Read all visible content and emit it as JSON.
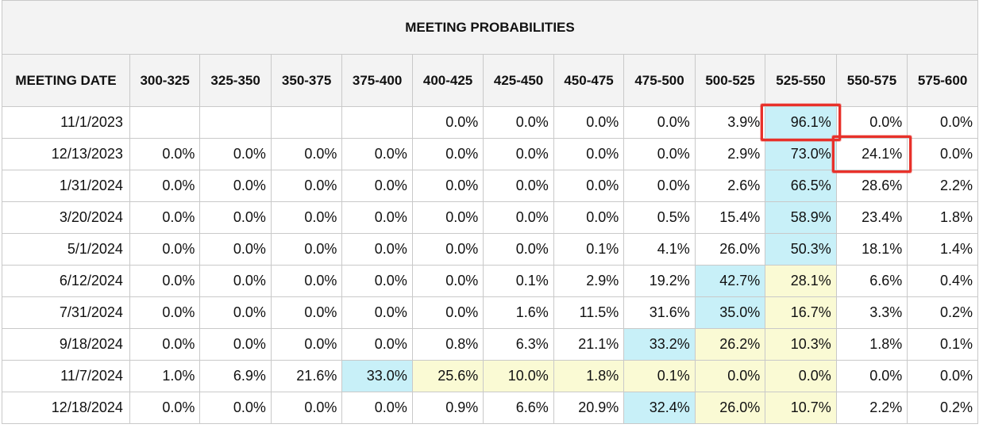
{
  "chart_data": {
    "type": "table",
    "title": "MEETING PROBABILITIES",
    "columns": [
      "MEETING DATE",
      "300-325",
      "325-350",
      "350-375",
      "375-400",
      "400-425",
      "425-450",
      "450-475",
      "475-500",
      "500-525",
      "525-550",
      "550-575",
      "575-600"
    ],
    "rows": [
      {
        "date": "11/1/2023",
        "values": [
          "",
          "",
          "",
          "",
          "0.0%",
          "0.0%",
          "0.0%",
          "0.0%",
          "3.9%",
          "96.1%",
          "0.0%",
          "0.0%"
        ],
        "highlights": [
          "empty",
          "empty",
          "empty",
          "empty",
          "",
          "",
          "",
          "",
          "",
          "blue",
          "",
          ""
        ]
      },
      {
        "date": "12/13/2023",
        "values": [
          "0.0%",
          "0.0%",
          "0.0%",
          "0.0%",
          "0.0%",
          "0.0%",
          "0.0%",
          "0.0%",
          "2.9%",
          "73.0%",
          "24.1%",
          "0.0%"
        ],
        "highlights": [
          "",
          "",
          "",
          "",
          "",
          "",
          "",
          "",
          "",
          "blue",
          "",
          ""
        ]
      },
      {
        "date": "1/31/2024",
        "values": [
          "0.0%",
          "0.0%",
          "0.0%",
          "0.0%",
          "0.0%",
          "0.0%",
          "0.0%",
          "0.0%",
          "2.6%",
          "66.5%",
          "28.6%",
          "2.2%"
        ],
        "highlights": [
          "",
          "",
          "",
          "",
          "",
          "",
          "",
          "",
          "",
          "blue",
          "",
          ""
        ]
      },
      {
        "date": "3/20/2024",
        "values": [
          "0.0%",
          "0.0%",
          "0.0%",
          "0.0%",
          "0.0%",
          "0.0%",
          "0.0%",
          "0.5%",
          "15.4%",
          "58.9%",
          "23.4%",
          "1.8%"
        ],
        "highlights": [
          "",
          "",
          "",
          "",
          "",
          "",
          "",
          "",
          "",
          "blue",
          "",
          ""
        ]
      },
      {
        "date": "5/1/2024",
        "values": [
          "0.0%",
          "0.0%",
          "0.0%",
          "0.0%",
          "0.0%",
          "0.0%",
          "0.1%",
          "4.1%",
          "26.0%",
          "50.3%",
          "18.1%",
          "1.4%"
        ],
        "highlights": [
          "",
          "",
          "",
          "",
          "",
          "",
          "",
          "",
          "",
          "blue",
          "",
          ""
        ]
      },
      {
        "date": "6/12/2024",
        "values": [
          "0.0%",
          "0.0%",
          "0.0%",
          "0.0%",
          "0.0%",
          "0.1%",
          "2.9%",
          "19.2%",
          "42.7%",
          "28.1%",
          "6.6%",
          "0.4%"
        ],
        "highlights": [
          "",
          "",
          "",
          "",
          "",
          "",
          "",
          "",
          "blue",
          "yellow",
          "",
          ""
        ]
      },
      {
        "date": "7/31/2024",
        "values": [
          "0.0%",
          "0.0%",
          "0.0%",
          "0.0%",
          "0.0%",
          "1.6%",
          "11.5%",
          "31.6%",
          "35.0%",
          "16.7%",
          "3.3%",
          "0.2%"
        ],
        "highlights": [
          "",
          "",
          "",
          "",
          "",
          "",
          "",
          "",
          "blue",
          "yellow",
          "",
          ""
        ]
      },
      {
        "date": "9/18/2024",
        "values": [
          "0.0%",
          "0.0%",
          "0.0%",
          "0.0%",
          "0.8%",
          "6.3%",
          "21.1%",
          "33.2%",
          "26.2%",
          "10.3%",
          "1.8%",
          "0.1%"
        ],
        "highlights": [
          "",
          "",
          "",
          "",
          "",
          "",
          "",
          "blue",
          "yellow",
          "yellow",
          "",
          ""
        ]
      },
      {
        "date": "11/7/2024",
        "values": [
          "1.0%",
          "6.9%",
          "21.6%",
          "33.0%",
          "25.6%",
          "10.0%",
          "1.8%",
          "0.1%",
          "0.0%",
          "0.0%",
          "0.0%",
          "0.0%"
        ],
        "highlights": [
          "",
          "",
          "",
          "blue",
          "yellow",
          "yellow",
          "yellow",
          "yellow",
          "yellow",
          "yellow",
          "",
          ""
        ]
      },
      {
        "date": "12/18/2024",
        "values": [
          "0.0%",
          "0.0%",
          "0.0%",
          "0.0%",
          "0.9%",
          "6.6%",
          "20.9%",
          "32.4%",
          "26.0%",
          "10.7%",
          "2.2%",
          "0.2%"
        ],
        "highlights": [
          "",
          "",
          "",
          "",
          "",
          "",
          "",
          "blue",
          "yellow",
          "yellow",
          "",
          ""
        ]
      }
    ],
    "annotations": [
      {
        "row": 0,
        "col": 9,
        "style": "red-box"
      },
      {
        "row": 1,
        "col": 10,
        "style": "red-box"
      }
    ],
    "colors": {
      "blue": "#c8f0f8",
      "yellow": "#fafad4",
      "annotation": "#e8312a",
      "header_bg": "#f3f3f3",
      "border": "#c9c9c9"
    }
  }
}
